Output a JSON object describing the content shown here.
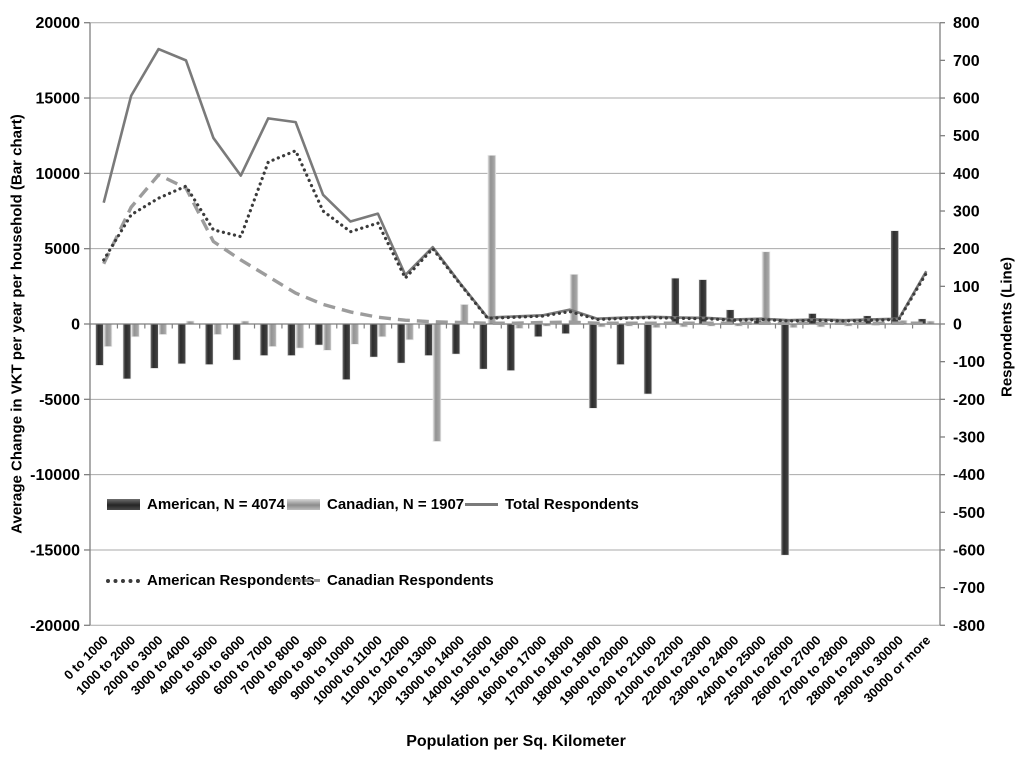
{
  "chart_data": {
    "type": "bar",
    "subtype": "combo bar+line, dual axis",
    "x_axis_title": "Population per Sq. Kilometer",
    "left_axis_title": "Average Change in VKT per year per household  (Bar chart)",
    "right_axis_title": "Respondents (Line)",
    "left_axis_range": [
      -20000,
      20000
    ],
    "right_axis_range": [
      -800,
      800
    ],
    "left_axis_ticks": [
      20000,
      15000,
      10000,
      5000,
      0,
      -5000,
      -10000,
      -15000,
      -20000
    ],
    "right_axis_ticks": [
      800,
      700,
      600,
      500,
      400,
      300,
      200,
      100,
      0,
      -100,
      -200,
      -300,
      -400,
      -500,
      -600,
      -700,
      -800
    ],
    "grid": "horizontal gridlines every 5000 (left axis) / 200 (right axis)",
    "legend_position": "inside plot, lower left, two rows, no border",
    "categories": [
      "0 to 1000",
      "1000 to 2000",
      "2000 to 3000",
      "3000 to 4000",
      "4000 to 5000",
      "5000 to 6000",
      "6000 to 7000",
      "7000 to 8000",
      "8000 to 9000",
      "9000 to 10000",
      "10000 to 11000",
      "11000 to 12000",
      "12000 to 13000",
      "13000 to 14000",
      "14000 to 15000",
      "15000 to 16000",
      "16000 to 17000",
      "17000 to 18000",
      "18000 to 19000",
      "19000 to 20000",
      "20000 to 21000",
      "21000 to 22000",
      "22000 to 23000",
      "23000 to 24000",
      "24000 to 25000",
      "25000 to 26000",
      "26000 to 27000",
      "27000 to 28000",
      "28000 to 29000",
      "29000 to 30000",
      "30000 or more"
    ],
    "series": [
      {
        "name": "American, N = 4074",
        "type": "bar",
        "axis": "left",
        "values": [
          -2750,
          -3650,
          -2950,
          -2650,
          -2700,
          -2400,
          -2100,
          -2100,
          -1400,
          -3700,
          -2200,
          -2600,
          -2100,
          -2000,
          -3000,
          -3100,
          -850,
          -650,
          -5600,
          -2700,
          -4650,
          3050,
          2950,
          950,
          250,
          -15350,
          700,
          150,
          550,
          6200,
          350
        ]
      },
      {
        "name": "Canadian, N = 1907",
        "type": "bar",
        "axis": "left",
        "values": [
          -1500,
          -850,
          -700,
          200,
          -700,
          200,
          -1500,
          -1600,
          -1750,
          -1350,
          -850,
          -1050,
          -7800,
          1300,
          11200,
          -300,
          -150,
          3300,
          -200,
          -150,
          -250,
          -200,
          -150,
          -150,
          4800,
          -250,
          -200,
          -150,
          -100,
          250,
          200
        ]
      },
      {
        "name": "Total Respondents",
        "type": "line",
        "style": "solid",
        "axis": "right",
        "values": [
          322,
          606,
          730,
          700,
          494,
          394,
          546,
          536,
          343,
          272,
          293,
          130,
          204,
          108,
          17,
          20,
          23,
          38,
          14,
          17,
          19,
          17,
          16,
          12,
          14,
          10,
          12,
          10,
          12,
          14,
          140
        ]
      },
      {
        "name": "American Respondents",
        "type": "line",
        "style": "dotted",
        "axis": "right",
        "values": [
          170,
          290,
          334,
          366,
          250,
          232,
          430,
          460,
          300,
          245,
          268,
          122,
          200,
          106,
          15,
          18,
          21,
          33,
          12,
          15,
          17,
          15,
          14,
          10,
          12,
          8,
          10,
          8,
          10,
          12,
          135
        ]
      },
      {
        "name": "Canadian Respondents",
        "type": "line",
        "style": "dashed",
        "axis": "right",
        "values": [
          160,
          310,
          396,
          361,
          219,
          170,
          126,
          82,
          52,
          32,
          18,
          10,
          6,
          4,
          2,
          2,
          4,
          5,
          2,
          2,
          2,
          2,
          2,
          2,
          2,
          2,
          2,
          2,
          2,
          2,
          2
        ]
      }
    ],
    "colors": {
      "american_bar_dark": "#3a3a3a",
      "canadian_bar_light": "#a8a8a8",
      "total_line": "#7a7a7a",
      "american_dotted_line": "#3b3b3b",
      "canadian_dashed_line": "#9c9c9c",
      "gridline": "#a9a9a9",
      "axis": "#7f7f7f",
      "text": "#000000"
    }
  }
}
